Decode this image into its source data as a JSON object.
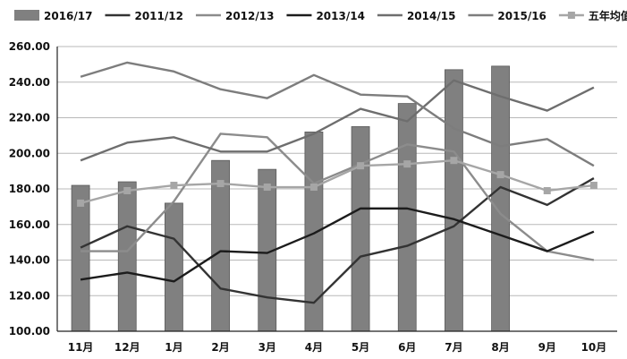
{
  "chart_data": {
    "type": "bar",
    "title": "",
    "xlabel": "",
    "ylabel": "",
    "categories": [
      "11月",
      "12月",
      "1月",
      "2月",
      "3月",
      "4月",
      "5月",
      "6月",
      "7月",
      "8月",
      "9月",
      "10月"
    ],
    "ylim": [
      100,
      260
    ],
    "yticks": [
      "100.00",
      "120.00",
      "140.00",
      "160.00",
      "180.00",
      "200.00",
      "220.00",
      "240.00",
      "260.00"
    ],
    "grid": true,
    "legend_position": "top",
    "bar_series": {
      "name": "2016/17",
      "color": "#808080",
      "values": [
        182,
        184,
        172,
        196,
        191,
        212,
        215,
        228,
        247,
        249,
        null,
        null
      ]
    },
    "series": [
      {
        "name": "2011/12",
        "color": "#333333",
        "values": [
          147,
          159,
          152,
          124,
          119,
          116,
          142,
          148,
          159,
          181,
          171,
          186
        ]
      },
      {
        "name": "2012/13",
        "color": "#8c8c8c",
        "values": [
          145,
          145,
          173,
          211,
          209,
          183,
          194,
          205,
          201,
          166,
          145,
          140
        ]
      },
      {
        "name": "2013/14",
        "color": "#1c1c1c",
        "values": [
          129,
          133,
          128,
          145,
          144,
          155,
          169,
          169,
          163,
          154,
          145,
          156
        ]
      },
      {
        "name": "2014/15",
        "color": "#6e6e6e",
        "values": [
          196,
          206,
          209,
          201,
          201,
          211,
          225,
          218,
          241,
          232,
          224,
          237
        ]
      },
      {
        "name": "2015/16",
        "color": "#7d7d7d",
        "values": [
          243,
          251,
          246,
          236,
          231,
          244,
          233,
          232,
          214,
          204,
          208,
          193
        ]
      },
      {
        "name": "五年均值",
        "color": "#a6a6a6",
        "marker": "square",
        "values": [
          172,
          179,
          182,
          183,
          181,
          181,
          193,
          194,
          196,
          188,
          179,
          182
        ]
      }
    ]
  }
}
